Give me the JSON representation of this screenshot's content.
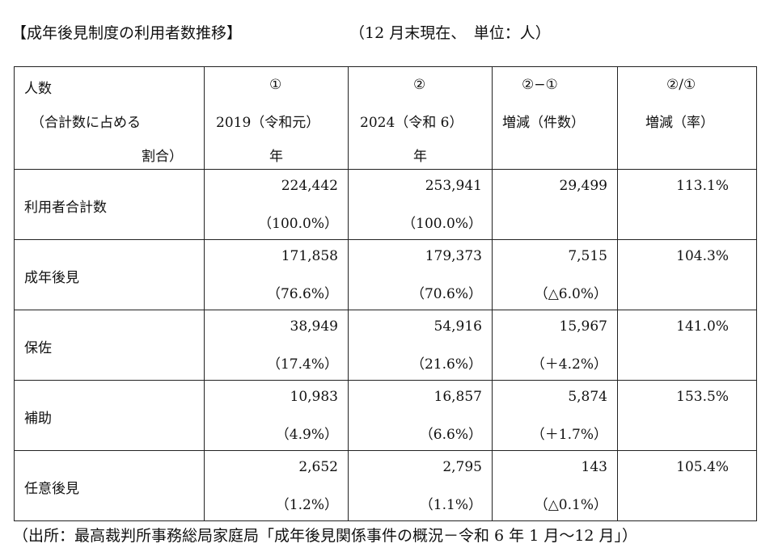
{
  "title": "【成年後見制度の利用者数推移】",
  "title_note": "（12 月末現在、　単位：人）",
  "header": {
    "col0": [
      "人数",
      "（合計数に占める",
      "割合）"
    ],
    "col1": [
      "①",
      "2019（令和元）",
      "年"
    ],
    "col2": [
      "②",
      "2024（令和 6）",
      "年"
    ],
    "col3": [
      "②−①",
      "増減（件数）"
    ],
    "col4": [
      "②/①",
      "増減（率）"
    ]
  },
  "rows": [
    {
      "label": "利用者合計数",
      "v2019": "224,442",
      "p2019": "（100.0%）",
      "v2024": "253,941",
      "p2024": "（100.0%）",
      "diff": "29,499",
      "diff_pct": "",
      "rate": "113.1%"
    },
    {
      "label": "成年後見",
      "v2019": "171,858",
      "p2019": "（76.6%）",
      "v2024": "179,373",
      "p2024": "（70.6%）",
      "diff": "7,515",
      "diff_pct": "（△6.0%）",
      "rate": "104.3%"
    },
    {
      "label": "保佐",
      "v2019": "38,949",
      "p2019": "（17.4%）",
      "v2024": "54,916",
      "p2024": "（21.6%）",
      "diff": "15,967",
      "diff_pct": "（＋4.2%）",
      "rate": "141.0%"
    },
    {
      "label": "補助",
      "v2019": "10,983",
      "p2019": "（4.9%）",
      "v2024": "16,857",
      "p2024": "（6.6%）",
      "diff": "5,874",
      "diff_pct": "（＋1.7%）",
      "rate": "153.5%"
    },
    {
      "label": "任意後見",
      "v2019": "2,652",
      "p2019": "（1.2%）",
      "v2024": "2,795",
      "p2024": "（1.1%）",
      "diff": "143",
      "diff_pct": "（△0.1%）",
      "rate": "105.4%"
    }
  ],
  "source": "（出所：最高裁判所事務総局家庭局「成年後見関係事件の概況－令和 6 年 1 月～12 月」）"
}
